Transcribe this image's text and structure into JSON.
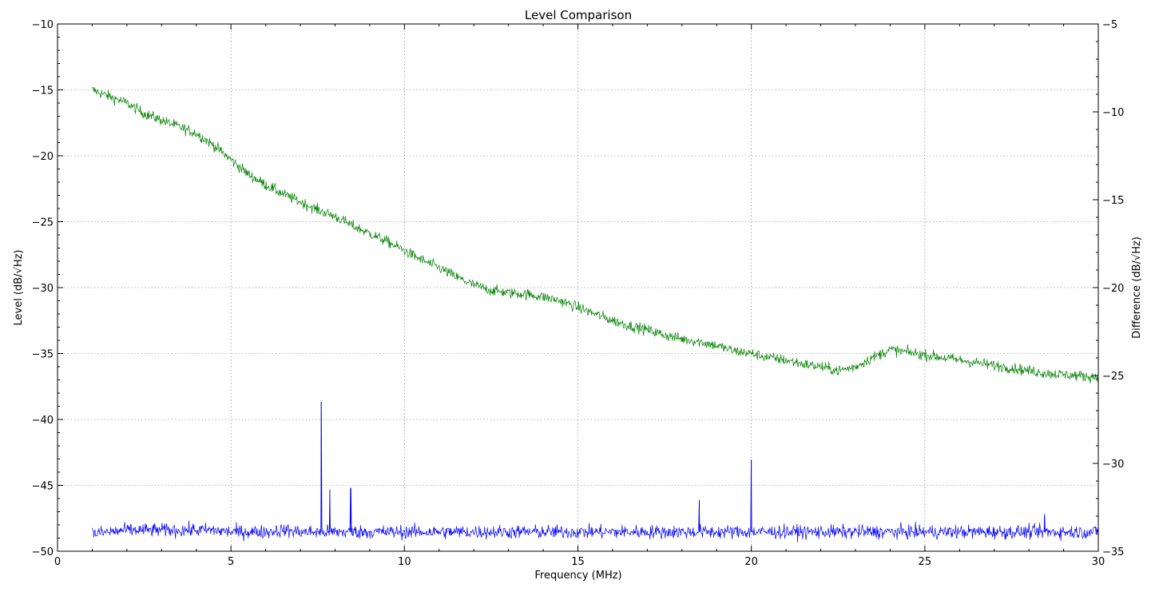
{
  "chart_data": {
    "type": "line",
    "title": "Level Comparison",
    "xlabel": "Frequency (MHz)",
    "ylabel": "Level (dB/√Hz)",
    "ylabel_right": "Difference (dB/√Hz)",
    "xlim": [
      0,
      30
    ],
    "ylim": [
      -50,
      -10
    ],
    "ylim_right": [
      -35,
      -5
    ],
    "x_ticks": [
      0,
      5,
      10,
      15,
      20,
      25,
      30
    ],
    "y_ticks": [
      -50,
      -45,
      -40,
      -35,
      -30,
      -25,
      -20,
      -15,
      -10
    ],
    "y_ticks_right": [
      -35,
      -30,
      -25,
      -20,
      -15,
      -10,
      -5
    ],
    "x_tick_labels": [
      "0",
      "5",
      "10",
      "15",
      "20",
      "25",
      "30"
    ],
    "y_tick_labels": [
      "−50",
      "−45",
      "−40",
      "−35",
      "−30",
      "−25",
      "−20",
      "−15",
      "−10"
    ],
    "y_tick_labels_right": [
      "−35",
      "−30",
      "−25",
      "−20",
      "−15",
      "−10",
      "−5"
    ],
    "grid": true,
    "series": [
      {
        "axis": "left",
        "color": "#008000",
        "x": [
          1.0,
          1.5,
          2.0,
          2.5,
          3.0,
          3.5,
          4.0,
          4.5,
          5.0,
          5.5,
          6.0,
          6.5,
          7.0,
          7.5,
          8.0,
          8.5,
          9.0,
          9.5,
          10.0,
          10.5,
          11.0,
          11.5,
          12.0,
          12.5,
          13.0,
          13.5,
          14.0,
          14.5,
          15.0,
          15.5,
          16.0,
          16.5,
          17.0,
          17.5,
          18.0,
          18.5,
          19.0,
          19.5,
          20.0,
          20.5,
          21.0,
          21.5,
          22.0,
          22.5,
          23.0,
          23.5,
          24.0,
          24.5,
          25.0,
          25.5,
          26.0,
          26.5,
          27.0,
          27.5,
          28.0,
          28.5,
          29.0,
          29.5,
          30.0
        ],
        "y": [
          -15.0,
          -15.5,
          -16.0,
          -16.8,
          -17.3,
          -17.8,
          -18.3,
          -19.2,
          -20.3,
          -21.4,
          -22.2,
          -22.9,
          -23.5,
          -24.1,
          -24.6,
          -25.3,
          -25.9,
          -26.5,
          -27.2,
          -27.9,
          -28.5,
          -29.2,
          -29.8,
          -30.2,
          -30.4,
          -30.5,
          -30.7,
          -31.0,
          -31.5,
          -32.0,
          -32.5,
          -32.9,
          -33.2,
          -33.6,
          -33.9,
          -34.1,
          -34.4,
          -34.8,
          -35.0,
          -35.3,
          -35.5,
          -35.8,
          -36.0,
          -36.3,
          -36.0,
          -35.3,
          -34.7,
          -34.9,
          -35.1,
          -35.3,
          -35.5,
          -35.7,
          -35.9,
          -36.1,
          -36.3,
          -36.5,
          -36.6,
          -36.7,
          -36.8
        ]
      },
      {
        "axis": "right",
        "color": "#0000ff",
        "x": [
          1.0,
          1.5,
          2.0,
          2.5,
          3.0,
          3.5,
          4.0,
          4.5,
          5.0,
          5.5,
          6.0,
          6.5,
          7.0,
          7.5,
          8.0,
          8.5,
          9.0,
          9.5,
          10.0,
          10.5,
          11.0,
          11.5,
          12.0,
          12.5,
          13.0,
          13.5,
          14.0,
          14.5,
          15.0,
          15.5,
          16.0,
          16.5,
          17.0,
          17.5,
          18.0,
          18.5,
          19.0,
          19.5,
          20.0,
          20.5,
          21.0,
          21.5,
          22.0,
          22.5,
          23.0,
          23.5,
          24.0,
          24.5,
          25.0,
          25.5,
          26.0,
          26.5,
          27.0,
          27.5,
          28.0,
          28.5,
          29.0,
          29.5,
          30.0
        ],
        "y": [
          -34.0,
          -33.9,
          -33.8,
          -33.8,
          -33.8,
          -33.8,
          -33.8,
          -33.8,
          -33.9,
          -33.9,
          -33.9,
          -33.8,
          -33.9,
          -33.9,
          -33.9,
          -33.9,
          -33.9,
          -33.9,
          -33.9,
          -33.9,
          -33.9,
          -33.9,
          -33.9,
          -33.9,
          -33.9,
          -33.9,
          -33.9,
          -33.9,
          -33.9,
          -33.9,
          -33.9,
          -33.9,
          -33.9,
          -33.9,
          -33.9,
          -33.9,
          -33.9,
          -33.9,
          -33.9,
          -33.9,
          -33.9,
          -33.9,
          -33.9,
          -33.9,
          -33.9,
          -33.9,
          -33.9,
          -33.9,
          -33.9,
          -33.9,
          -33.9,
          -33.9,
          -33.9,
          -33.9,
          -33.9,
          -33.9,
          -33.9,
          -33.9,
          -33.9
        ],
        "peaks": [
          {
            "x": 7.6,
            "y": -26.5
          },
          {
            "x": 7.85,
            "y": -31.5
          },
          {
            "x": 8.45,
            "y": -31.4
          },
          {
            "x": 18.5,
            "y": -32.1
          },
          {
            "x": 20.0,
            "y": -29.8
          },
          {
            "x": 28.45,
            "y": -32.9
          }
        ]
      }
    ]
  }
}
